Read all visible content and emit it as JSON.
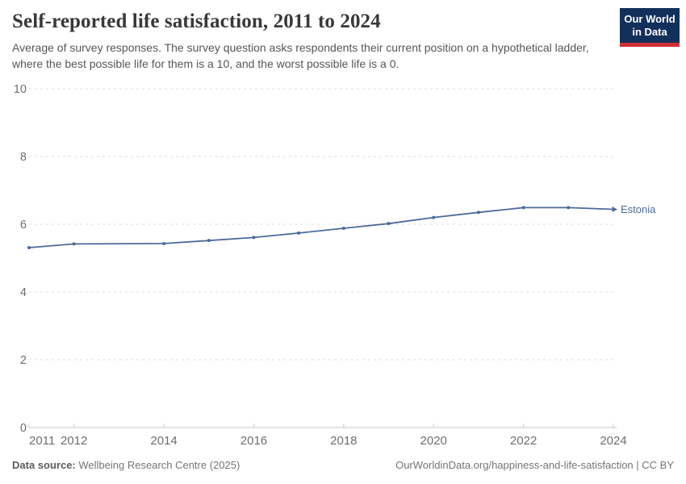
{
  "header": {
    "title": "Self-reported life satisfaction, 2011 to 2024",
    "subtitle": "Average of survey responses. The survey question asks respondents their current position on a hypothetical ladder, where the best possible life for them is a 10, and the worst possible life is a 0.",
    "logo": {
      "line1": "Our World",
      "line2": "in Data",
      "bg_color": "#12305b",
      "bar_color": "#cc2f33"
    }
  },
  "chart_data": {
    "type": "line",
    "title": "Self-reported life satisfaction, 2011 to 2024",
    "xlabel": "",
    "ylabel": "",
    "xlim": [
      2011,
      2024
    ],
    "ylim": [
      0,
      10
    ],
    "grid": "horizontal-dashed",
    "legend_position": "end-of-line-label",
    "x_ticks": [
      2011,
      2012,
      2014,
      2016,
      2018,
      2020,
      2022,
      2024
    ],
    "y_ticks": [
      0,
      2,
      4,
      6,
      8,
      10
    ],
    "missing_years": [
      2013
    ],
    "series": [
      {
        "name": "Estonia",
        "color": "#4c6a9c",
        "points": [
          {
            "year": 2011,
            "value": 5.31
          },
          {
            "year": 2012,
            "value": 5.42
          },
          {
            "year": 2014,
            "value": 5.43
          },
          {
            "year": 2015,
            "value": 5.52
          },
          {
            "year": 2016,
            "value": 5.61
          },
          {
            "year": 2017,
            "value": 5.74
          },
          {
            "year": 2018,
            "value": 5.88
          },
          {
            "year": 2019,
            "value": 6.02
          },
          {
            "year": 2020,
            "value": 6.2
          },
          {
            "year": 2021,
            "value": 6.35
          },
          {
            "year": 2022,
            "value": 6.49
          },
          {
            "year": 2023,
            "value": 6.49
          },
          {
            "year": 2024,
            "value": 6.44
          }
        ]
      }
    ],
    "axis_colors": {
      "grid": "#dddddd",
      "axis_line": "#c9c9c9",
      "tick_labels": "#6e6e6e"
    }
  },
  "footer": {
    "source_label": "Data source:",
    "source_value": " Wellbeing Research Centre (2025)",
    "right_text": "OurWorldinData.org/happiness-and-life-satisfaction | CC BY"
  }
}
